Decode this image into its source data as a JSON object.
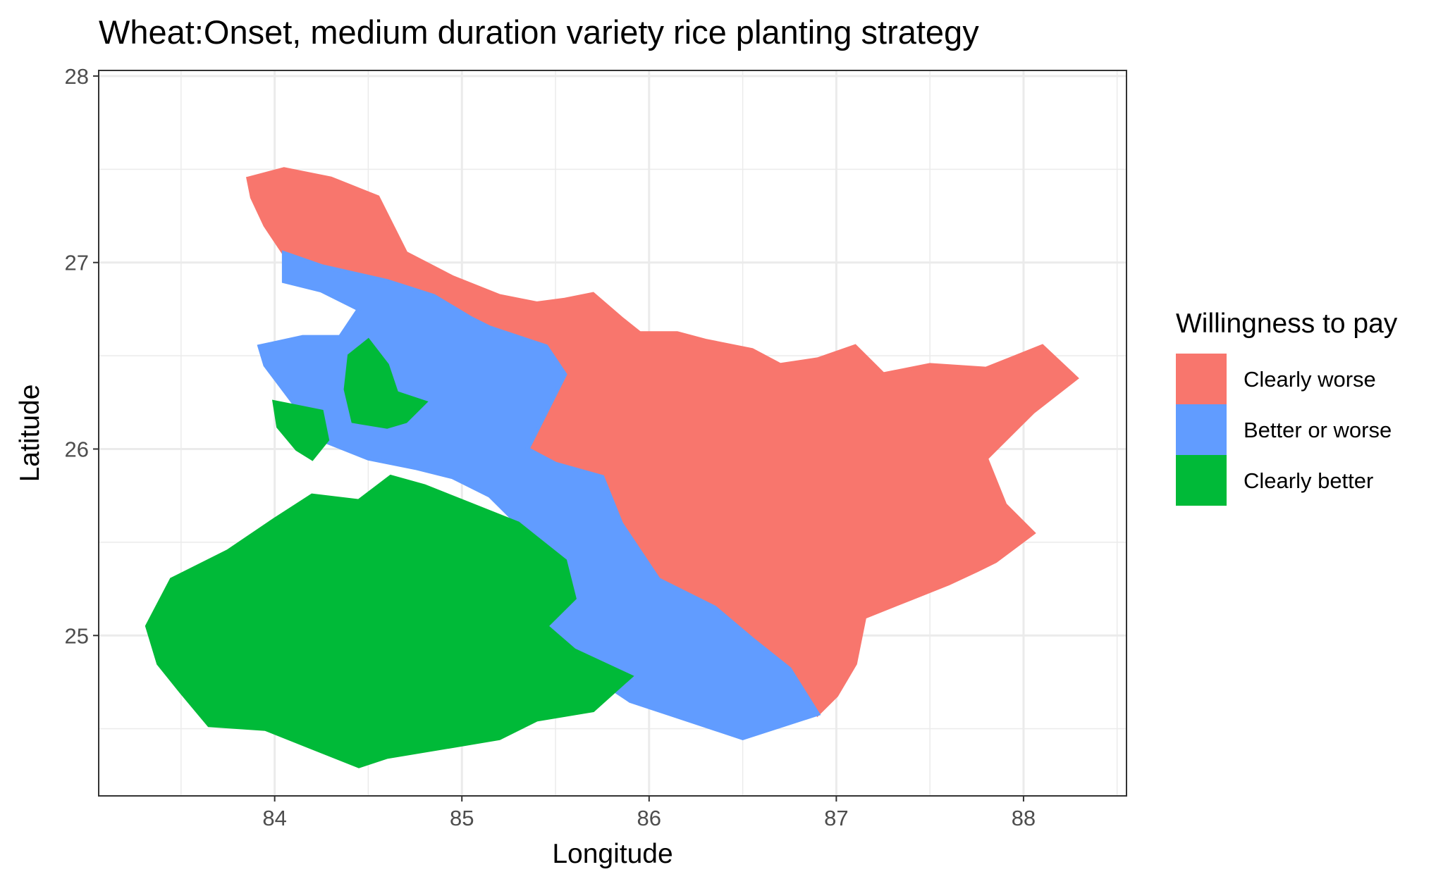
{
  "chart_data": {
    "type": "map",
    "title": "Wheat:Onset, medium duration variety rice planting strategy",
    "xlabel": "Longitude",
    "ylabel": "Latitude",
    "xlim": [
      83.06,
      88.55
    ],
    "ylim": [
      24.14,
      28.03
    ],
    "x_ticks": [
      84,
      85,
      86,
      87,
      88
    ],
    "y_ticks": [
      25,
      26,
      27,
      28
    ],
    "grid": true,
    "legend": {
      "title": "Willingness to pay",
      "placement": "right",
      "entries": [
        {
          "label": "Clearly worse",
          "color": "#F8766D"
        },
        {
          "label": "Better or worse",
          "color": "#619CFF"
        },
        {
          "label": "Clearly better",
          "color": "#00BA38"
        }
      ]
    },
    "regions": [
      {
        "category": "Clearly worse",
        "color": "#F8766D",
        "polygon": [
          [
            83.86,
            27.45
          ],
          [
            84.05,
            27.5
          ],
          [
            84.3,
            27.45
          ],
          [
            84.55,
            27.35
          ],
          [
            84.7,
            27.05
          ],
          [
            84.95,
            26.92
          ],
          [
            85.2,
            26.82
          ],
          [
            85.4,
            26.78
          ],
          [
            85.55,
            26.8
          ],
          [
            85.7,
            26.83
          ],
          [
            85.85,
            26.7
          ],
          [
            85.95,
            26.62
          ],
          [
            86.15,
            26.62
          ],
          [
            86.3,
            26.58
          ],
          [
            86.55,
            26.53
          ],
          [
            86.7,
            26.45
          ],
          [
            86.9,
            26.48
          ],
          [
            87.1,
            26.55
          ],
          [
            87.25,
            26.4
          ],
          [
            87.5,
            26.45
          ],
          [
            87.8,
            26.43
          ],
          [
            88.1,
            26.55
          ],
          [
            88.28,
            26.38
          ],
          [
            88.05,
            26.2
          ],
          [
            87.8,
            25.95
          ],
          [
            87.9,
            25.7
          ],
          [
            88.05,
            25.55
          ],
          [
            87.85,
            25.4
          ],
          [
            87.75,
            25.35
          ],
          [
            87.6,
            25.28
          ],
          [
            87.4,
            25.2
          ],
          [
            87.15,
            25.1
          ],
          [
            87.1,
            24.85
          ],
          [
            87.0,
            24.68
          ],
          [
            86.9,
            24.58
          ],
          [
            86.75,
            24.82
          ],
          [
            86.55,
            24.98
          ],
          [
            86.35,
            25.15
          ],
          [
            86.05,
            25.3
          ],
          [
            85.85,
            25.6
          ],
          [
            85.75,
            25.85
          ],
          [
            85.5,
            25.92
          ],
          [
            85.35,
            26.0
          ],
          [
            85.45,
            26.2
          ],
          [
            85.55,
            26.4
          ],
          [
            85.45,
            26.55
          ],
          [
            85.15,
            26.65
          ],
          [
            85.05,
            26.7
          ],
          [
            84.85,
            26.82
          ],
          [
            84.6,
            26.9
          ],
          [
            84.25,
            26.98
          ],
          [
            84.05,
            27.05
          ],
          [
            83.95,
            27.2
          ],
          [
            83.88,
            27.35
          ]
        ]
      },
      {
        "category": "Better or worse",
        "color": "#619CFF",
        "polygon": [
          [
            84.05,
            27.05
          ],
          [
            84.25,
            26.98
          ],
          [
            84.6,
            26.9
          ],
          [
            84.85,
            26.82
          ],
          [
            85.05,
            26.7
          ],
          [
            85.15,
            26.65
          ],
          [
            85.45,
            26.55
          ],
          [
            85.55,
            26.4
          ],
          [
            85.45,
            26.2
          ],
          [
            85.35,
            26.0
          ],
          [
            85.5,
            25.92
          ],
          [
            85.75,
            25.85
          ],
          [
            85.85,
            25.6
          ],
          [
            86.05,
            25.3
          ],
          [
            86.35,
            25.15
          ],
          [
            86.55,
            24.98
          ],
          [
            86.75,
            24.82
          ],
          [
            86.9,
            24.58
          ],
          [
            86.5,
            24.45
          ],
          [
            86.2,
            24.55
          ],
          [
            85.9,
            24.65
          ],
          [
            85.6,
            24.85
          ],
          [
            85.35,
            25.0
          ],
          [
            85.3,
            25.25
          ],
          [
            85.35,
            25.55
          ],
          [
            85.15,
            25.75
          ],
          [
            84.95,
            25.85
          ],
          [
            84.75,
            25.9
          ],
          [
            84.5,
            25.95
          ],
          [
            84.25,
            26.05
          ],
          [
            84.1,
            26.25
          ],
          [
            83.95,
            26.45
          ],
          [
            83.92,
            26.55
          ],
          [
            84.15,
            26.6
          ],
          [
            84.35,
            26.6
          ],
          [
            84.45,
            26.75
          ],
          [
            84.25,
            26.85
          ],
          [
            84.05,
            26.9
          ]
        ]
      },
      {
        "category": "Clearly better",
        "color": "#00BA38",
        "polygon": [
          [
            83.32,
            25.05
          ],
          [
            83.45,
            25.3
          ],
          [
            83.75,
            25.45
          ],
          [
            84.0,
            25.62
          ],
          [
            84.2,
            25.75
          ],
          [
            84.45,
            25.72
          ],
          [
            84.62,
            25.85
          ],
          [
            84.8,
            25.8
          ],
          [
            85.05,
            25.7
          ],
          [
            85.3,
            25.6
          ],
          [
            85.55,
            25.4
          ],
          [
            85.6,
            25.2
          ],
          [
            85.45,
            25.05
          ],
          [
            85.6,
            24.92
          ],
          [
            85.9,
            24.78
          ],
          [
            85.7,
            24.6
          ],
          [
            85.4,
            24.55
          ],
          [
            85.2,
            24.45
          ],
          [
            84.9,
            24.4
          ],
          [
            84.6,
            24.35
          ],
          [
            84.45,
            24.3
          ],
          [
            84.2,
            24.4
          ],
          [
            83.95,
            24.5
          ],
          [
            83.65,
            24.52
          ],
          [
            83.5,
            24.7
          ],
          [
            83.38,
            24.85
          ]
        ]
      },
      {
        "category": "Clearly better",
        "color": "#00BA38",
        "polygon": [
          [
            84.4,
            26.5
          ],
          [
            84.5,
            26.58
          ],
          [
            84.6,
            26.45
          ],
          [
            84.65,
            26.3
          ],
          [
            84.8,
            26.25
          ],
          [
            84.7,
            26.15
          ],
          [
            84.6,
            26.12
          ],
          [
            84.42,
            26.15
          ],
          [
            84.38,
            26.32
          ]
        ]
      },
      {
        "category": "Clearly better",
        "color": "#00BA38",
        "polygon": [
          [
            84.0,
            26.25
          ],
          [
            84.1,
            26.23
          ],
          [
            84.25,
            26.2
          ],
          [
            84.28,
            26.05
          ],
          [
            84.2,
            25.95
          ],
          [
            84.12,
            26.0
          ],
          [
            84.02,
            26.12
          ]
        ]
      }
    ]
  }
}
